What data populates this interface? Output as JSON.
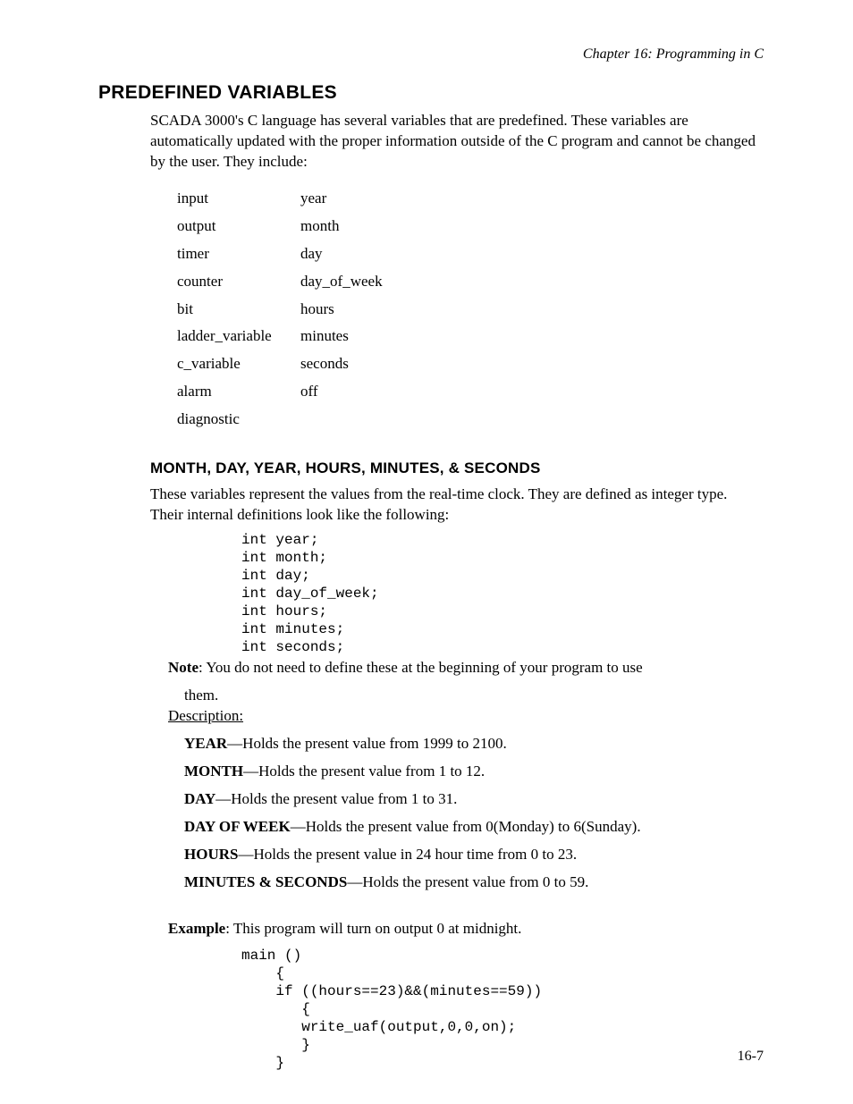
{
  "header": {
    "running": "Chapter 16: Programming in C"
  },
  "section": {
    "title": "PREDEFINED VARIABLES",
    "intro": "SCADA 3000's C language has several variables that are predefined.  These variables are automatically updated with the proper information outside of the C program and cannot be changed by the user.  They include:"
  },
  "variables_table": {
    "col1": [
      "input",
      "output",
      "timer",
      "counter",
      "bit",
      "ladder_variable",
      "c_variable",
      "alarm",
      "diagnostic"
    ],
    "col2": [
      "year",
      "month",
      "day",
      "day_of_week",
      "hours",
      "minutes",
      "seconds",
      "off",
      ""
    ]
  },
  "subsection": {
    "title": "MONTH, DAY, YEAR, HOURS, MINUTES, & SECONDS",
    "para": "These variables represent the values from the real-time clock.  They are defined as integer type.   Their internal definitions look like the following:",
    "code1": "int year;\nint month;\nint day;\nint day_of_week;\nint hours;\nint minutes;\nint seconds;",
    "note_label": "Note",
    "note_text": ":  You do not need to define these at the beginning of your program to use",
    "note_text2": "them.",
    "desc_label": "Description:",
    "items": [
      {
        "name": "YEAR",
        "text": "—Holds the present value from 1999 to 2100."
      },
      {
        "name": "MONTH",
        "text": "—Holds the present value from 1 to 12."
      },
      {
        "name": "DAY",
        "text": "—Holds the present value from 1 to 31."
      },
      {
        "name": "DAY OF WEEK",
        "text": "—Holds the present value from 0(Monday) to 6(Sunday)."
      },
      {
        "name": "HOURS",
        "text": "—Holds the present value in  24 hour time from 0 to 23."
      },
      {
        "name": "MINUTES & SECONDS",
        "text": "—Holds the present value from 0 to 59."
      }
    ],
    "example_label": "Example",
    "example_text": ": This program will turn on output 0 at midnight.",
    "code2": "main ()\n    {\n    if ((hours==23)&&(minutes==59))\n       {\n       write_uaf(output,0,0,on);\n       }\n    }"
  },
  "footer": {
    "page_number": "16-7"
  }
}
